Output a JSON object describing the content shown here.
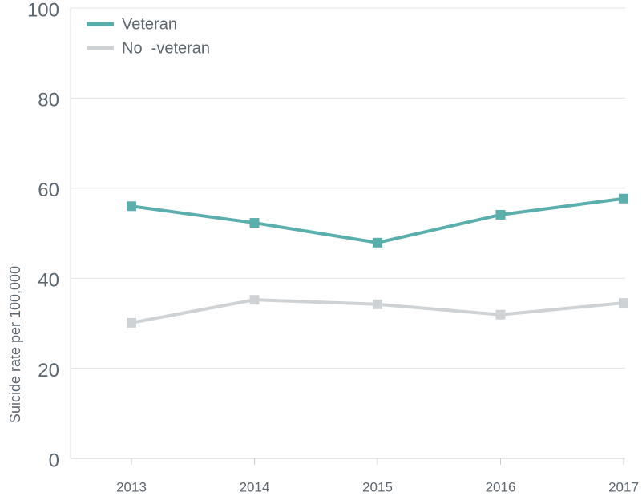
{
  "chart_data": {
    "type": "line",
    "y_label": "Suicide rate per 100,000",
    "categories": [
      "2013",
      "2014",
      "2015",
      "2016",
      "2017"
    ],
    "series": [
      {
        "name": "Veteran",
        "color": "#5aafad",
        "values": [
          56.0,
          52.3,
          47.9,
          54.1,
          57.7
        ]
      },
      {
        "name": "No  -veteran",
        "color": "#cfd2d4",
        "values": [
          30.1,
          35.2,
          34.2,
          31.9,
          34.5
        ]
      }
    ],
    "ylim": [
      0,
      100
    ],
    "yticks": [
      0,
      20,
      40,
      60,
      80,
      100
    ],
    "grid": true,
    "legend": "top-left"
  }
}
